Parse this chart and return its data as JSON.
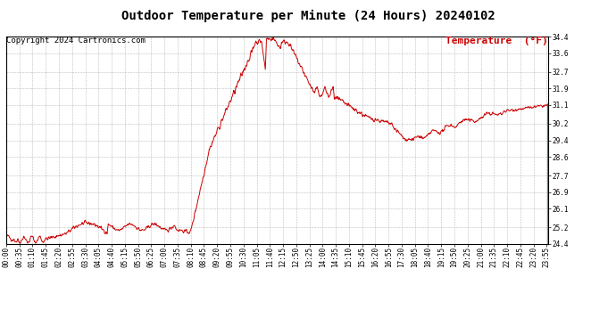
{
  "title": "Outdoor Temperature per Minute (24 Hours) 20240102",
  "copyright_text": "Copyright 2024 Cartronics.com",
  "legend_label": "Temperature  (°F)",
  "line_color": "#cc0000",
  "background_color": "#ffffff",
  "grid_color": "#aaaaaa",
  "text_color": "#000000",
  "legend_color": "#cc0000",
  "ylim": [
    24.4,
    34.4
  ],
  "yticks": [
    24.4,
    25.2,
    26.1,
    26.9,
    27.7,
    28.6,
    29.4,
    30.2,
    31.1,
    31.9,
    32.7,
    33.6,
    34.4
  ],
  "xlabel": "",
  "ylabel": "",
  "title_fontsize": 10,
  "tick_fontsize": 5.5,
  "copyright_fontsize": 6.5,
  "legend_fontsize": 8
}
